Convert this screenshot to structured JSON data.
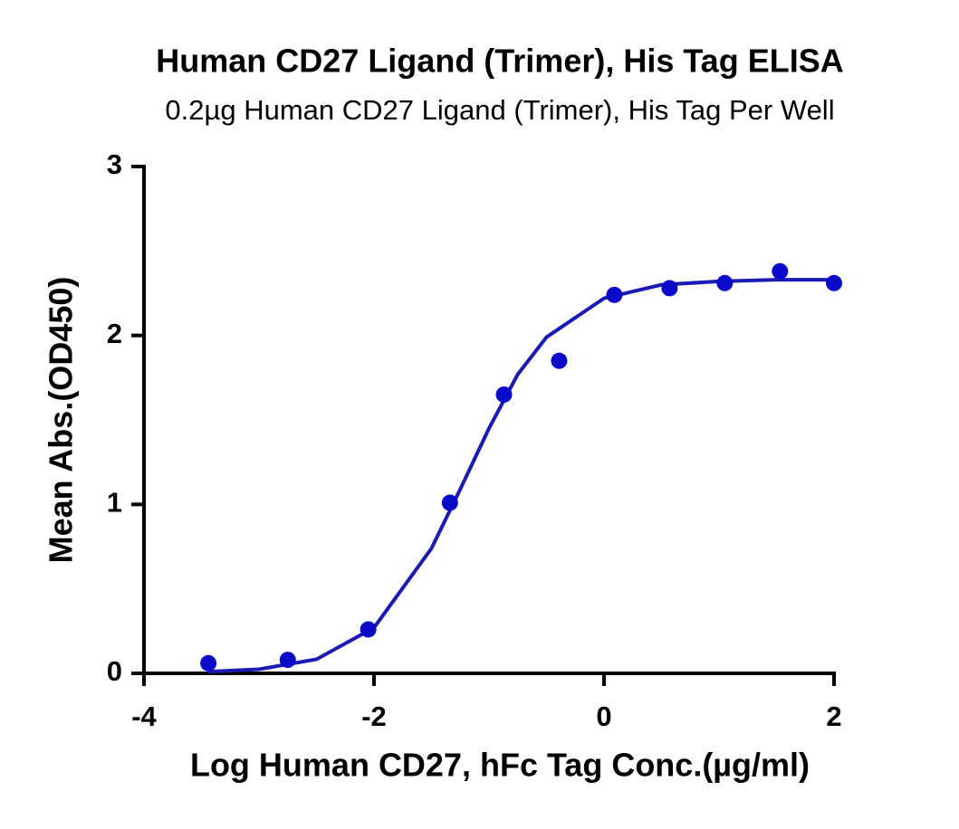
{
  "chart_data": {
    "type": "scatter",
    "title": "Human CD27 Ligand (Trimer), His Tag ELISA",
    "subtitle": "0.2µg Human CD27 Ligand (Trimer), His Tag Per Well",
    "x_label": "Log Human CD27, hFc Tag Conc.(µg/ml)",
    "y_label": "Mean Abs.(OD450)",
    "points": {
      "color": "#0a0ac8",
      "x": [
        -3.44,
        -2.75,
        -2.05,
        -1.34,
        -0.87,
        -0.39,
        0.09,
        0.57,
        1.05,
        1.53,
        2.0
      ],
      "y": [
        0.06,
        0.08,
        0.26,
        1.01,
        1.65,
        1.85,
        2.24,
        2.28,
        2.31,
        2.38,
        2.31
      ]
    },
    "curve": {
      "color": "#1a1ab4",
      "x": [
        -3.44,
        -3,
        -2.5,
        -2,
        -1.5,
        -1.25,
        -1,
        -0.75,
        -0.5,
        0,
        0.5,
        1,
        1.5,
        2
      ],
      "y": [
        0.01,
        0.024,
        0.083,
        0.27,
        0.74,
        1.09,
        1.45,
        1.77,
        1.99,
        2.22,
        2.3,
        2.32,
        2.33,
        2.33
      ]
    },
    "xlim": [
      -4,
      2
    ],
    "xticks": [
      -4,
      -2,
      0,
      2
    ],
    "ylim": [
      0,
      3
    ],
    "yticks": [
      0,
      1,
      2,
      3
    ]
  }
}
